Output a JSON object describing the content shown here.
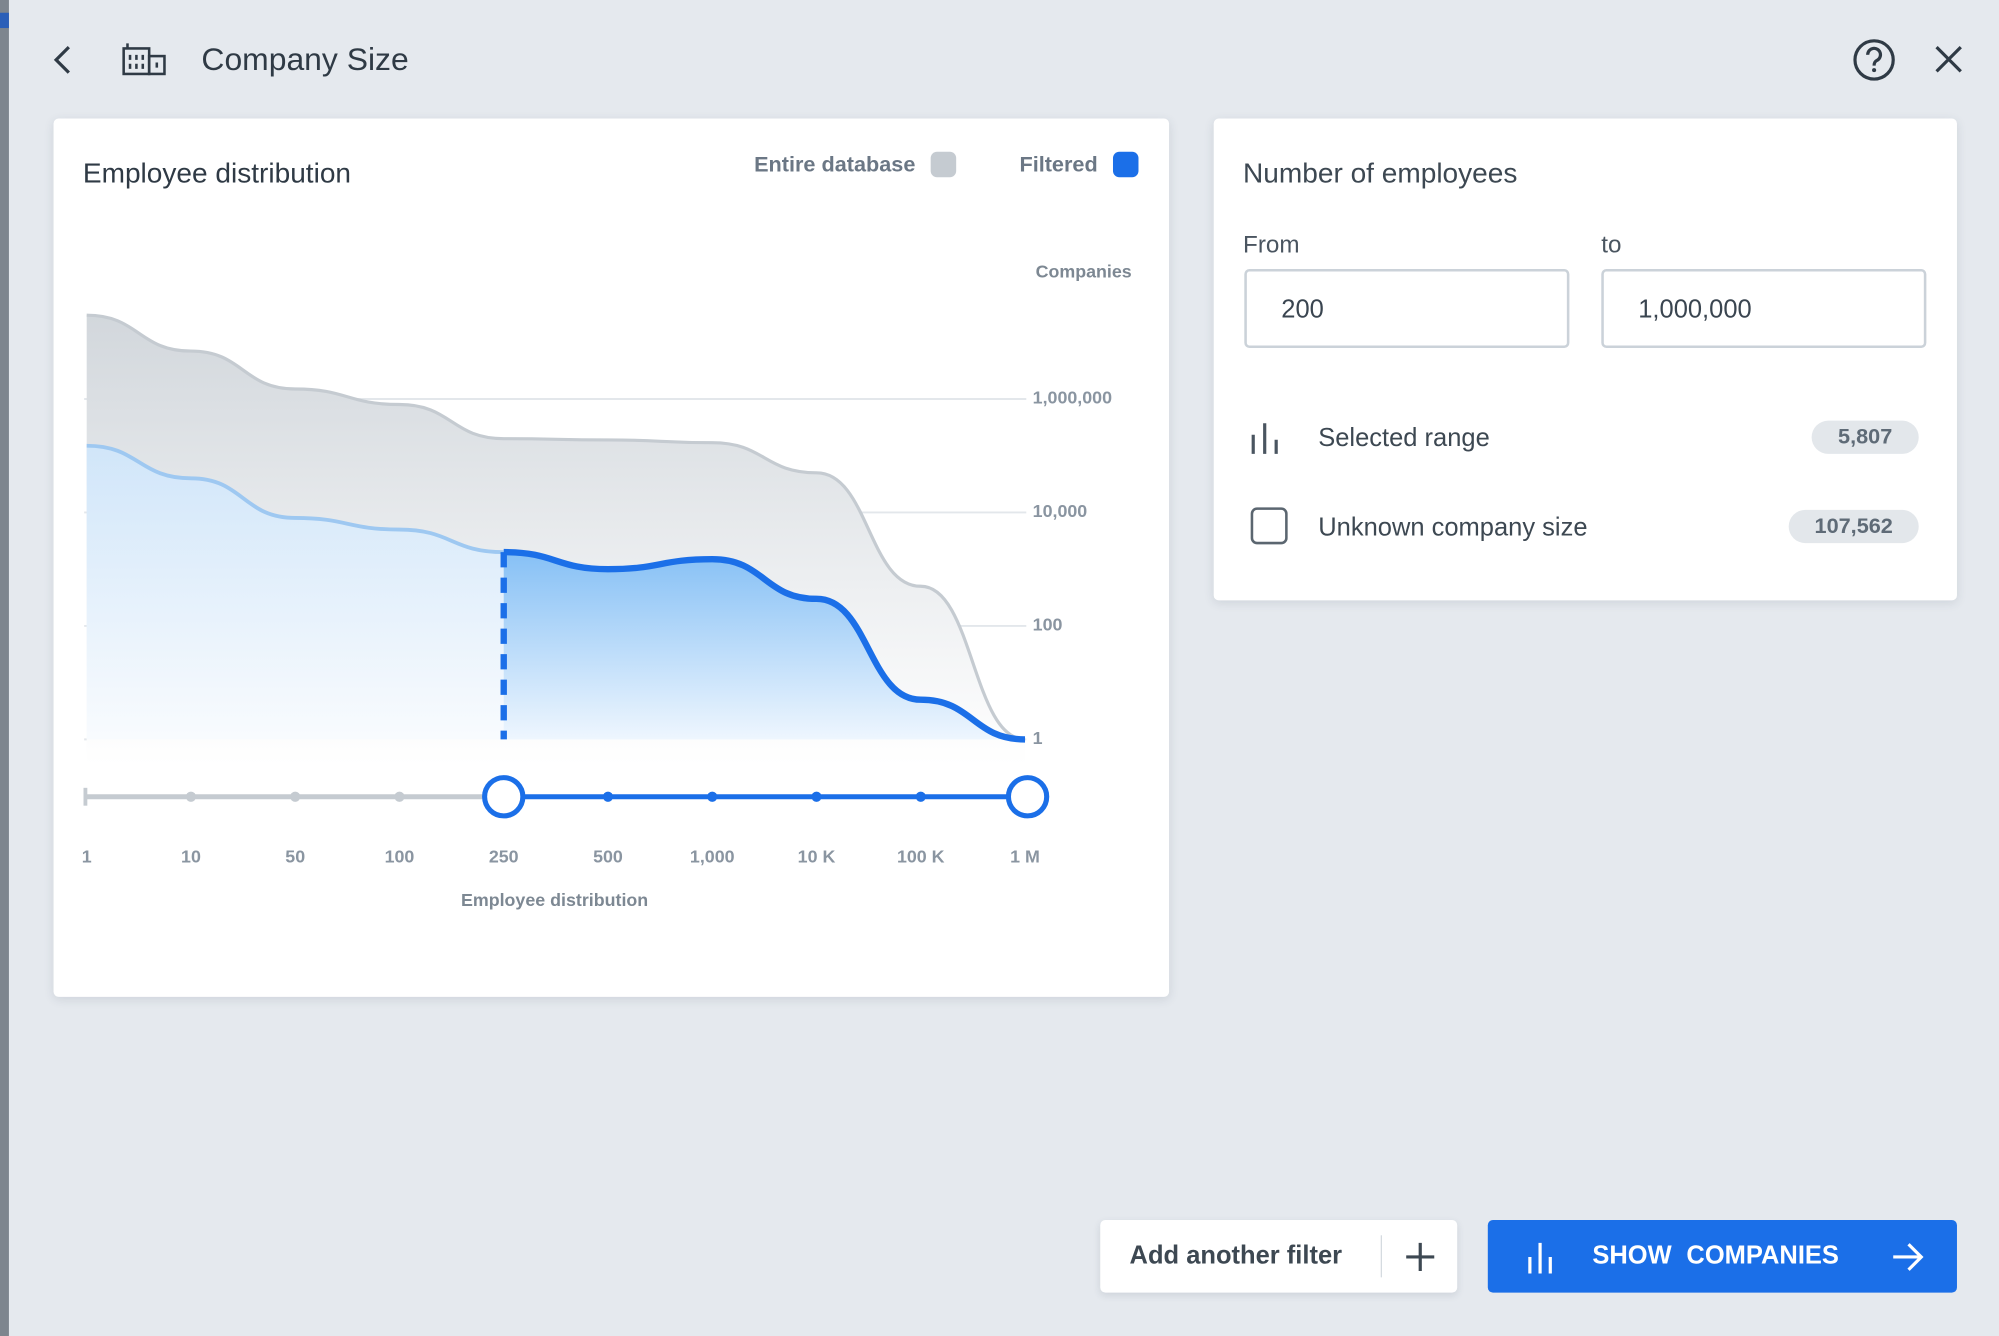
{
  "header": {
    "title": "Company Size"
  },
  "chart_data": {
    "type": "area",
    "title": "Employee distribution",
    "y_label": "Companies",
    "x_label": "Employee distribution",
    "categories": [
      "1",
      "10",
      "50",
      "100",
      "250",
      "500",
      "1,000",
      "10 K",
      "100 K",
      "1 M"
    ],
    "series": [
      {
        "name": "Entire database",
        "color": "#c5cbd1",
        "values": [
          30000000,
          7000000,
          1500000,
          800000,
          200000,
          190000,
          170000,
          50000,
          500,
          1
        ]
      },
      {
        "name": "Filtered",
        "color": "#1b6fe8",
        "values": [
          150000,
          40000,
          8000,
          5000,
          2000,
          1000,
          1500,
          300,
          5,
          1
        ]
      }
    ],
    "ylim": [
      1,
      100000000
    ],
    "yticks": [
      1,
      100,
      {
        "value": 10000,
        "label": "10,000"
      },
      {
        "value": 1000000,
        "label": "1,000,000"
      }
    ],
    "log_scale": true,
    "grid": true,
    "legend": "top-right",
    "selection": [
      4,
      9
    ]
  },
  "employees_panel": {
    "title": "Number of employees",
    "from_label": "From",
    "from_value": "200",
    "to_label": "to",
    "to_value": "1,000,000",
    "rows": [
      {
        "label": "Selected range",
        "count": "5,807"
      },
      {
        "label": "Unknown company size",
        "count": "107,562"
      }
    ]
  },
  "actions": {
    "add_filter": "Add another filter",
    "show": "SHOW COMPANIES"
  }
}
